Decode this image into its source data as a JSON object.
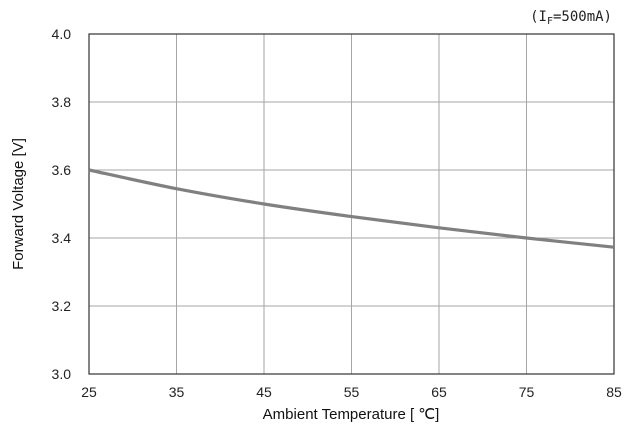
{
  "chart_data": {
    "type": "line",
    "condition_label": {
      "prefix": "(I",
      "subscript": "F",
      "suffix": "=500mA)"
    },
    "xlabel": "Ambient Temperature [ ℃]",
    "ylabel": "Forward Voltage [V]",
    "xlim": [
      25,
      85
    ],
    "ylim": [
      3.0,
      4.0
    ],
    "x_ticks": [
      25,
      35,
      45,
      55,
      65,
      75,
      85
    ],
    "y_ticks": [
      "3.0",
      "3.2",
      "3.4",
      "3.6",
      "3.8",
      "4.0"
    ],
    "grid": true,
    "series": [
      {
        "x": [
          25,
          35,
          45,
          55,
          65,
          75,
          85
        ],
        "y": [
          3.6,
          3.545,
          3.5,
          3.463,
          3.43,
          3.4,
          3.373
        ],
        "color": "#808080"
      }
    ]
  }
}
